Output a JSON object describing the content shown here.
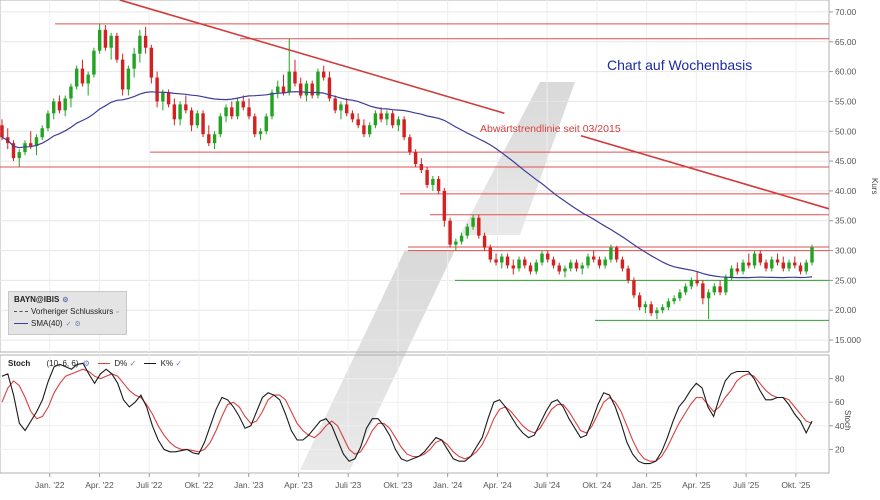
{
  "chart_data": [
    {
      "type": "candlestick",
      "title": "Chart auf Wochenbasis",
      "instrument": "BAYN@IBIS",
      "y_axis_label": "Kurs",
      "ylim": [
        13,
        72
      ],
      "y_ticks": [
        "70.00",
        "65.00",
        "60.00",
        "55.00",
        "50.00",
        "45.00",
        "40.00",
        "35.00",
        "30.00",
        "25.00",
        "20.00",
        "15.000"
      ],
      "x_ticks": [
        "Jan. '22",
        "Apr. '22",
        "Juli '22",
        "Okt. '22",
        "Jan. '23",
        "Apr. '23",
        "Juli '23",
        "Okt. '23",
        "Jan. '24",
        "Apr. '24",
        "Juli '24",
        "Okt. '24",
        "Jan. '25",
        "Apr. '25",
        "Juli '25",
        "Okt. '25"
      ],
      "x_range": [
        "2021-10",
        "2025-12"
      ],
      "legend": [
        {
          "label": "Vorheriger Schlusskurs",
          "style": "dashed",
          "color": "#555555"
        },
        {
          "label": "SMA(40)",
          "style": "solid",
          "color": "#3c3c9a"
        }
      ],
      "annotation": "Abwärtstrendlinie seit 03/2015",
      "resistance_levels": [
        68.0,
        65.5,
        46.5,
        44.0,
        39.5,
        36.0,
        30.6,
        30.0
      ],
      "support_levels": [
        25.0,
        18.3
      ],
      "trendline": {
        "start": {
          "x": "2022-04",
          "y": 73
        },
        "end": {
          "x": "2025-12",
          "y": 37
        },
        "color": "#d33b3b"
      },
      "colors": {
        "up": "#22a322",
        "down": "#d42020",
        "sma": "#3c3c9a",
        "resistance": "#e05050",
        "support": "#2ea02e"
      },
      "ohlc": [
        [
          51.0,
          52.0,
          48.5,
          49.0
        ],
        [
          49.0,
          50.5,
          47.0,
          48.0
        ],
        [
          48.0,
          48.5,
          45.0,
          45.5
        ],
        [
          45.5,
          47.0,
          44.0,
          46.5
        ],
        [
          46.5,
          48.5,
          46.0,
          48.0
        ],
        [
          48.0,
          50.0,
          47.0,
          47.5
        ],
        [
          47.5,
          49.5,
          46.0,
          49.0
        ],
        [
          49.0,
          51.0,
          48.5,
          50.5
        ],
        [
          50.5,
          53.5,
          50.0,
          53.0
        ],
        [
          53.0,
          55.5,
          52.0,
          55.0
        ],
        [
          55.0,
          56.0,
          53.0,
          53.5
        ],
        [
          53.5,
          56.0,
          52.5,
          55.5
        ],
        [
          55.5,
          58.0,
          54.0,
          57.5
        ],
        [
          57.5,
          61.0,
          57.0,
          60.5
        ],
        [
          60.5,
          62.0,
          57.5,
          58.0
        ],
        [
          58.0,
          60.0,
          56.0,
          59.5
        ],
        [
          59.5,
          64.0,
          59.0,
          63.5
        ],
        [
          63.5,
          68.0,
          63.0,
          67.0
        ],
        [
          67.0,
          67.8,
          63.5,
          64.0
        ],
        [
          64.0,
          66.5,
          62.0,
          66.0
        ],
        [
          66.0,
          66.5,
          61.5,
          62.0
        ],
        [
          62.0,
          63.0,
          56.0,
          57.0
        ],
        [
          57.0,
          61.0,
          56.0,
          60.5
        ],
        [
          60.5,
          64.0,
          59.0,
          63.0
        ],
        [
          63.0,
          67.0,
          61.5,
          66.0
        ],
        [
          66.0,
          67.5,
          63.0,
          64.0
        ],
        [
          64.0,
          64.5,
          58.0,
          59.0
        ],
        [
          59.0,
          60.0,
          54.0,
          55.0
        ],
        [
          55.0,
          57.0,
          53.5,
          56.5
        ],
        [
          56.5,
          57.0,
          54.0,
          54.5
        ],
        [
          54.5,
          55.5,
          51.0,
          52.0
        ],
        [
          52.0,
          55.0,
          51.0,
          54.5
        ],
        [
          54.5,
          56.0,
          53.0,
          53.5
        ],
        [
          53.5,
          54.0,
          50.0,
          51.0
        ],
        [
          51.0,
          53.5,
          50.5,
          53.0
        ],
        [
          53.0,
          53.5,
          49.0,
          49.5
        ],
        [
          49.5,
          51.0,
          47.5,
          48.0
        ],
        [
          48.0,
          50.0,
          47.0,
          49.5
        ],
        [
          49.5,
          53.0,
          49.0,
          52.5
        ],
        [
          52.5,
          54.5,
          51.5,
          54.0
        ],
        [
          54.0,
          55.0,
          52.0,
          52.5
        ],
        [
          52.5,
          55.5,
          52.0,
          55.0
        ],
        [
          55.0,
          56.0,
          53.5,
          54.0
        ],
        [
          54.0,
          55.5,
          52.0,
          52.5
        ],
        [
          52.5,
          53.0,
          49.0,
          49.5
        ],
        [
          49.5,
          50.5,
          48.5,
          50.0
        ],
        [
          50.0,
          53.0,
          49.5,
          52.5
        ],
        [
          52.5,
          57.0,
          52.0,
          56.5
        ],
        [
          56.5,
          58.5,
          55.5,
          57.5
        ],
        [
          57.5,
          59.5,
          56.0,
          56.5
        ],
        [
          56.5,
          65.5,
          56.0,
          60.0
        ],
        [
          60.0,
          62.0,
          57.5,
          58.0
        ],
        [
          58.0,
          59.0,
          55.5,
          56.0
        ],
        [
          56.0,
          58.5,
          55.0,
          58.0
        ],
        [
          58.0,
          58.5,
          55.5,
          56.0
        ],
        [
          56.0,
          60.5,
          55.5,
          60.0
        ],
        [
          60.0,
          61.0,
          58.5,
          59.0
        ],
        [
          59.0,
          60.0,
          55.0,
          55.5
        ],
        [
          55.5,
          56.0,
          53.0,
          53.5
        ],
        [
          53.5,
          55.0,
          52.0,
          54.5
        ],
        [
          54.5,
          55.5,
          52.5,
          53.0
        ],
        [
          53.0,
          53.5,
          51.5,
          52.0
        ],
        [
          52.0,
          53.0,
          50.5,
          51.0
        ],
        [
          51.0,
          52.0,
          49.0,
          49.5
        ],
        [
          49.5,
          51.5,
          49.0,
          51.0
        ],
        [
          51.0,
          53.5,
          50.5,
          53.0
        ],
        [
          53.0,
          54.0,
          51.5,
          52.0
        ],
        [
          52.0,
          53.5,
          51.0,
          53.0
        ],
        [
          53.0,
          53.5,
          50.5,
          51.0
        ],
        [
          51.0,
          52.5,
          50.0,
          52.0
        ],
        [
          52.0,
          52.5,
          48.5,
          49.0
        ],
        [
          49.0,
          49.5,
          46.0,
          46.5
        ],
        [
          46.5,
          47.0,
          44.0,
          44.5
        ],
        [
          44.5,
          45.5,
          43.0,
          43.5
        ],
        [
          43.5,
          44.0,
          40.5,
          41.0
        ],
        [
          41.0,
          42.5,
          40.0,
          42.0
        ],
        [
          42.0,
          42.5,
          39.5,
          40.0
        ],
        [
          40.0,
          40.5,
          34.0,
          35.0
        ],
        [
          35.0,
          35.5,
          30.5,
          31.0
        ],
        [
          31.0,
          32.0,
          30.0,
          31.5
        ],
        [
          31.5,
          33.0,
          31.0,
          32.5
        ],
        [
          32.5,
          34.5,
          32.0,
          34.0
        ],
        [
          34.0,
          36.0,
          33.5,
          35.5
        ],
        [
          35.5,
          36.0,
          32.0,
          32.5
        ],
        [
          32.5,
          33.0,
          30.0,
          30.5
        ],
        [
          30.5,
          31.0,
          28.0,
          28.5
        ],
        [
          28.5,
          29.5,
          27.5,
          28.0
        ],
        [
          28.0,
          29.5,
          27.0,
          29.0
        ],
        [
          29.0,
          29.5,
          27.0,
          27.5
        ],
        [
          27.5,
          28.5,
          26.0,
          27.0
        ],
        [
          27.0,
          29.0,
          26.5,
          28.5
        ],
        [
          28.5,
          29.0,
          27.0,
          27.5
        ],
        [
          27.5,
          28.0,
          26.0,
          26.5
        ],
        [
          26.5,
          28.5,
          26.0,
          28.0
        ],
        [
          28.0,
          30.0,
          27.5,
          29.5
        ],
        [
          29.5,
          30.0,
          28.0,
          28.5
        ],
        [
          28.5,
          29.0,
          27.0,
          27.5
        ],
        [
          27.5,
          28.0,
          26.0,
          26.5
        ],
        [
          26.5,
          27.5,
          25.5,
          27.0
        ],
        [
          27.0,
          28.5,
          26.5,
          28.0
        ],
        [
          28.0,
          28.5,
          26.5,
          27.0
        ],
        [
          27.0,
          28.0,
          26.0,
          27.5
        ],
        [
          27.5,
          29.5,
          27.0,
          29.0
        ],
        [
          29.0,
          30.0,
          28.0,
          28.5
        ],
        [
          28.5,
          29.0,
          27.0,
          27.5
        ],
        [
          27.5,
          29.0,
          27.0,
          28.5
        ],
        [
          28.5,
          31.0,
          28.0,
          30.5
        ],
        [
          30.5,
          30.8,
          28.0,
          28.5
        ],
        [
          28.5,
          29.0,
          26.5,
          27.0
        ],
        [
          27.0,
          27.5,
          24.5,
          25.0
        ],
        [
          25.0,
          25.5,
          22.0,
          22.5
        ],
        [
          22.5,
          23.0,
          20.0,
          20.5
        ],
        [
          20.5,
          21.5,
          19.5,
          21.0
        ],
        [
          21.0,
          21.5,
          19.0,
          19.5
        ],
        [
          19.5,
          20.5,
          18.5,
          20.0
        ],
        [
          20.0,
          21.0,
          19.5,
          20.5
        ],
        [
          20.5,
          22.0,
          20.0,
          21.5
        ],
        [
          21.5,
          22.5,
          21.0,
          22.0
        ],
        [
          22.0,
          23.5,
          21.5,
          23.0
        ],
        [
          23.0,
          24.5,
          22.5,
          24.0
        ],
        [
          24.0,
          25.5,
          23.5,
          25.0
        ],
        [
          25.0,
          26.5,
          24.0,
          24.5
        ],
        [
          24.5,
          25.0,
          21.0,
          22.0
        ],
        [
          22.0,
          23.5,
          18.5,
          23.0
        ],
        [
          23.0,
          24.5,
          22.5,
          24.0
        ],
        [
          24.0,
          25.0,
          22.5,
          23.0
        ],
        [
          23.0,
          26.0,
          22.5,
          25.5
        ],
        [
          25.5,
          27.5,
          25.0,
          27.0
        ],
        [
          27.0,
          28.0,
          26.0,
          26.5
        ],
        [
          26.5,
          28.5,
          26.0,
          28.0
        ],
        [
          28.0,
          29.5,
          27.0,
          27.5
        ],
        [
          27.5,
          30.0,
          27.0,
          29.5
        ],
        [
          29.5,
          30.0,
          27.5,
          28.0
        ],
        [
          28.0,
          28.5,
          26.5,
          27.0
        ],
        [
          27.0,
          29.0,
          26.5,
          28.5
        ],
        [
          28.5,
          29.5,
          27.5,
          28.0
        ],
        [
          28.0,
          29.0,
          26.5,
          27.0
        ],
        [
          27.0,
          28.5,
          26.5,
          28.0
        ],
        [
          28.0,
          29.0,
          27.0,
          27.5
        ],
        [
          27.5,
          28.0,
          26.0,
          26.5
        ],
        [
          26.5,
          28.5,
          26.0,
          28.0
        ],
        [
          28.0,
          31.0,
          27.5,
          30.5
        ]
      ]
    },
    {
      "type": "line",
      "title": "Stoch",
      "params": "(10, 6, 6)",
      "series": [
        {
          "name": "D%",
          "color": "#d84040",
          "values": [
            60,
            72,
            78,
            74,
            64,
            52,
            46,
            48,
            56,
            68,
            76,
            82,
            84,
            86,
            88,
            86,
            82,
            80,
            82,
            84,
            82,
            76,
            70,
            66,
            64,
            58,
            50,
            40,
            32,
            26,
            22,
            20,
            20,
            19,
            18,
            20,
            26,
            36,
            48,
            58,
            60,
            56,
            48,
            42,
            44,
            52,
            62,
            66,
            66,
            62,
            52,
            42,
            36,
            32,
            30,
            34,
            40,
            44,
            40,
            30,
            20,
            16,
            18,
            26,
            36,
            42,
            42,
            38,
            30,
            22,
            16,
            14,
            14,
            16,
            20,
            26,
            28,
            24,
            18,
            14,
            12,
            14,
            18,
            24,
            34,
            46,
            54,
            56,
            52,
            46,
            40,
            36,
            34,
            38,
            46,
            54,
            58,
            58,
            52,
            44,
            36,
            34,
            40,
            50,
            60,
            64,
            60,
            52,
            40,
            28,
            18,
            12,
            10,
            10,
            14,
            22,
            32,
            42,
            50,
            58,
            64,
            64,
            58,
            52,
            56,
            64,
            70,
            78,
            82,
            84,
            82,
            76,
            70,
            66,
            64,
            64,
            62,
            56,
            50,
            44,
            42
          ]
        },
        {
          "name": "K%",
          "color": "#1a1a1a",
          "values": [
            82,
            84,
            66,
            42,
            36,
            44,
            52,
            62,
            78,
            90,
            92,
            90,
            88,
            92,
            93,
            84,
            76,
            84,
            88,
            84,
            76,
            62,
            56,
            60,
            66,
            56,
            40,
            28,
            20,
            18,
            18,
            19,
            20,
            17,
            16,
            26,
            40,
            54,
            64,
            62,
            56,
            48,
            38,
            40,
            52,
            64,
            68,
            66,
            62,
            50,
            36,
            28,
            28,
            32,
            38,
            44,
            46,
            40,
            28,
            16,
            10,
            12,
            22,
            38,
            46,
            46,
            40,
            32,
            20,
            12,
            10,
            12,
            14,
            18,
            24,
            30,
            28,
            20,
            12,
            10,
            10,
            14,
            22,
            30,
            46,
            60,
            62,
            56,
            48,
            40,
            34,
            30,
            32,
            42,
            52,
            60,
            62,
            56,
            46,
            38,
            30,
            32,
            44,
            58,
            68,
            66,
            56,
            42,
            26,
            16,
            10,
            8,
            8,
            10,
            18,
            30,
            44,
            56,
            62,
            70,
            76,
            72,
            56,
            48,
            64,
            78,
            84,
            86,
            86,
            86,
            80,
            70,
            62,
            62,
            64,
            64,
            58,
            50,
            44,
            34,
            44
          ]
        }
      ],
      "ylim": [
        0,
        100
      ],
      "y_ticks": [
        "80",
        "60",
        "40",
        "20"
      ],
      "y_axis_label": "Stoch"
    }
  ]
}
